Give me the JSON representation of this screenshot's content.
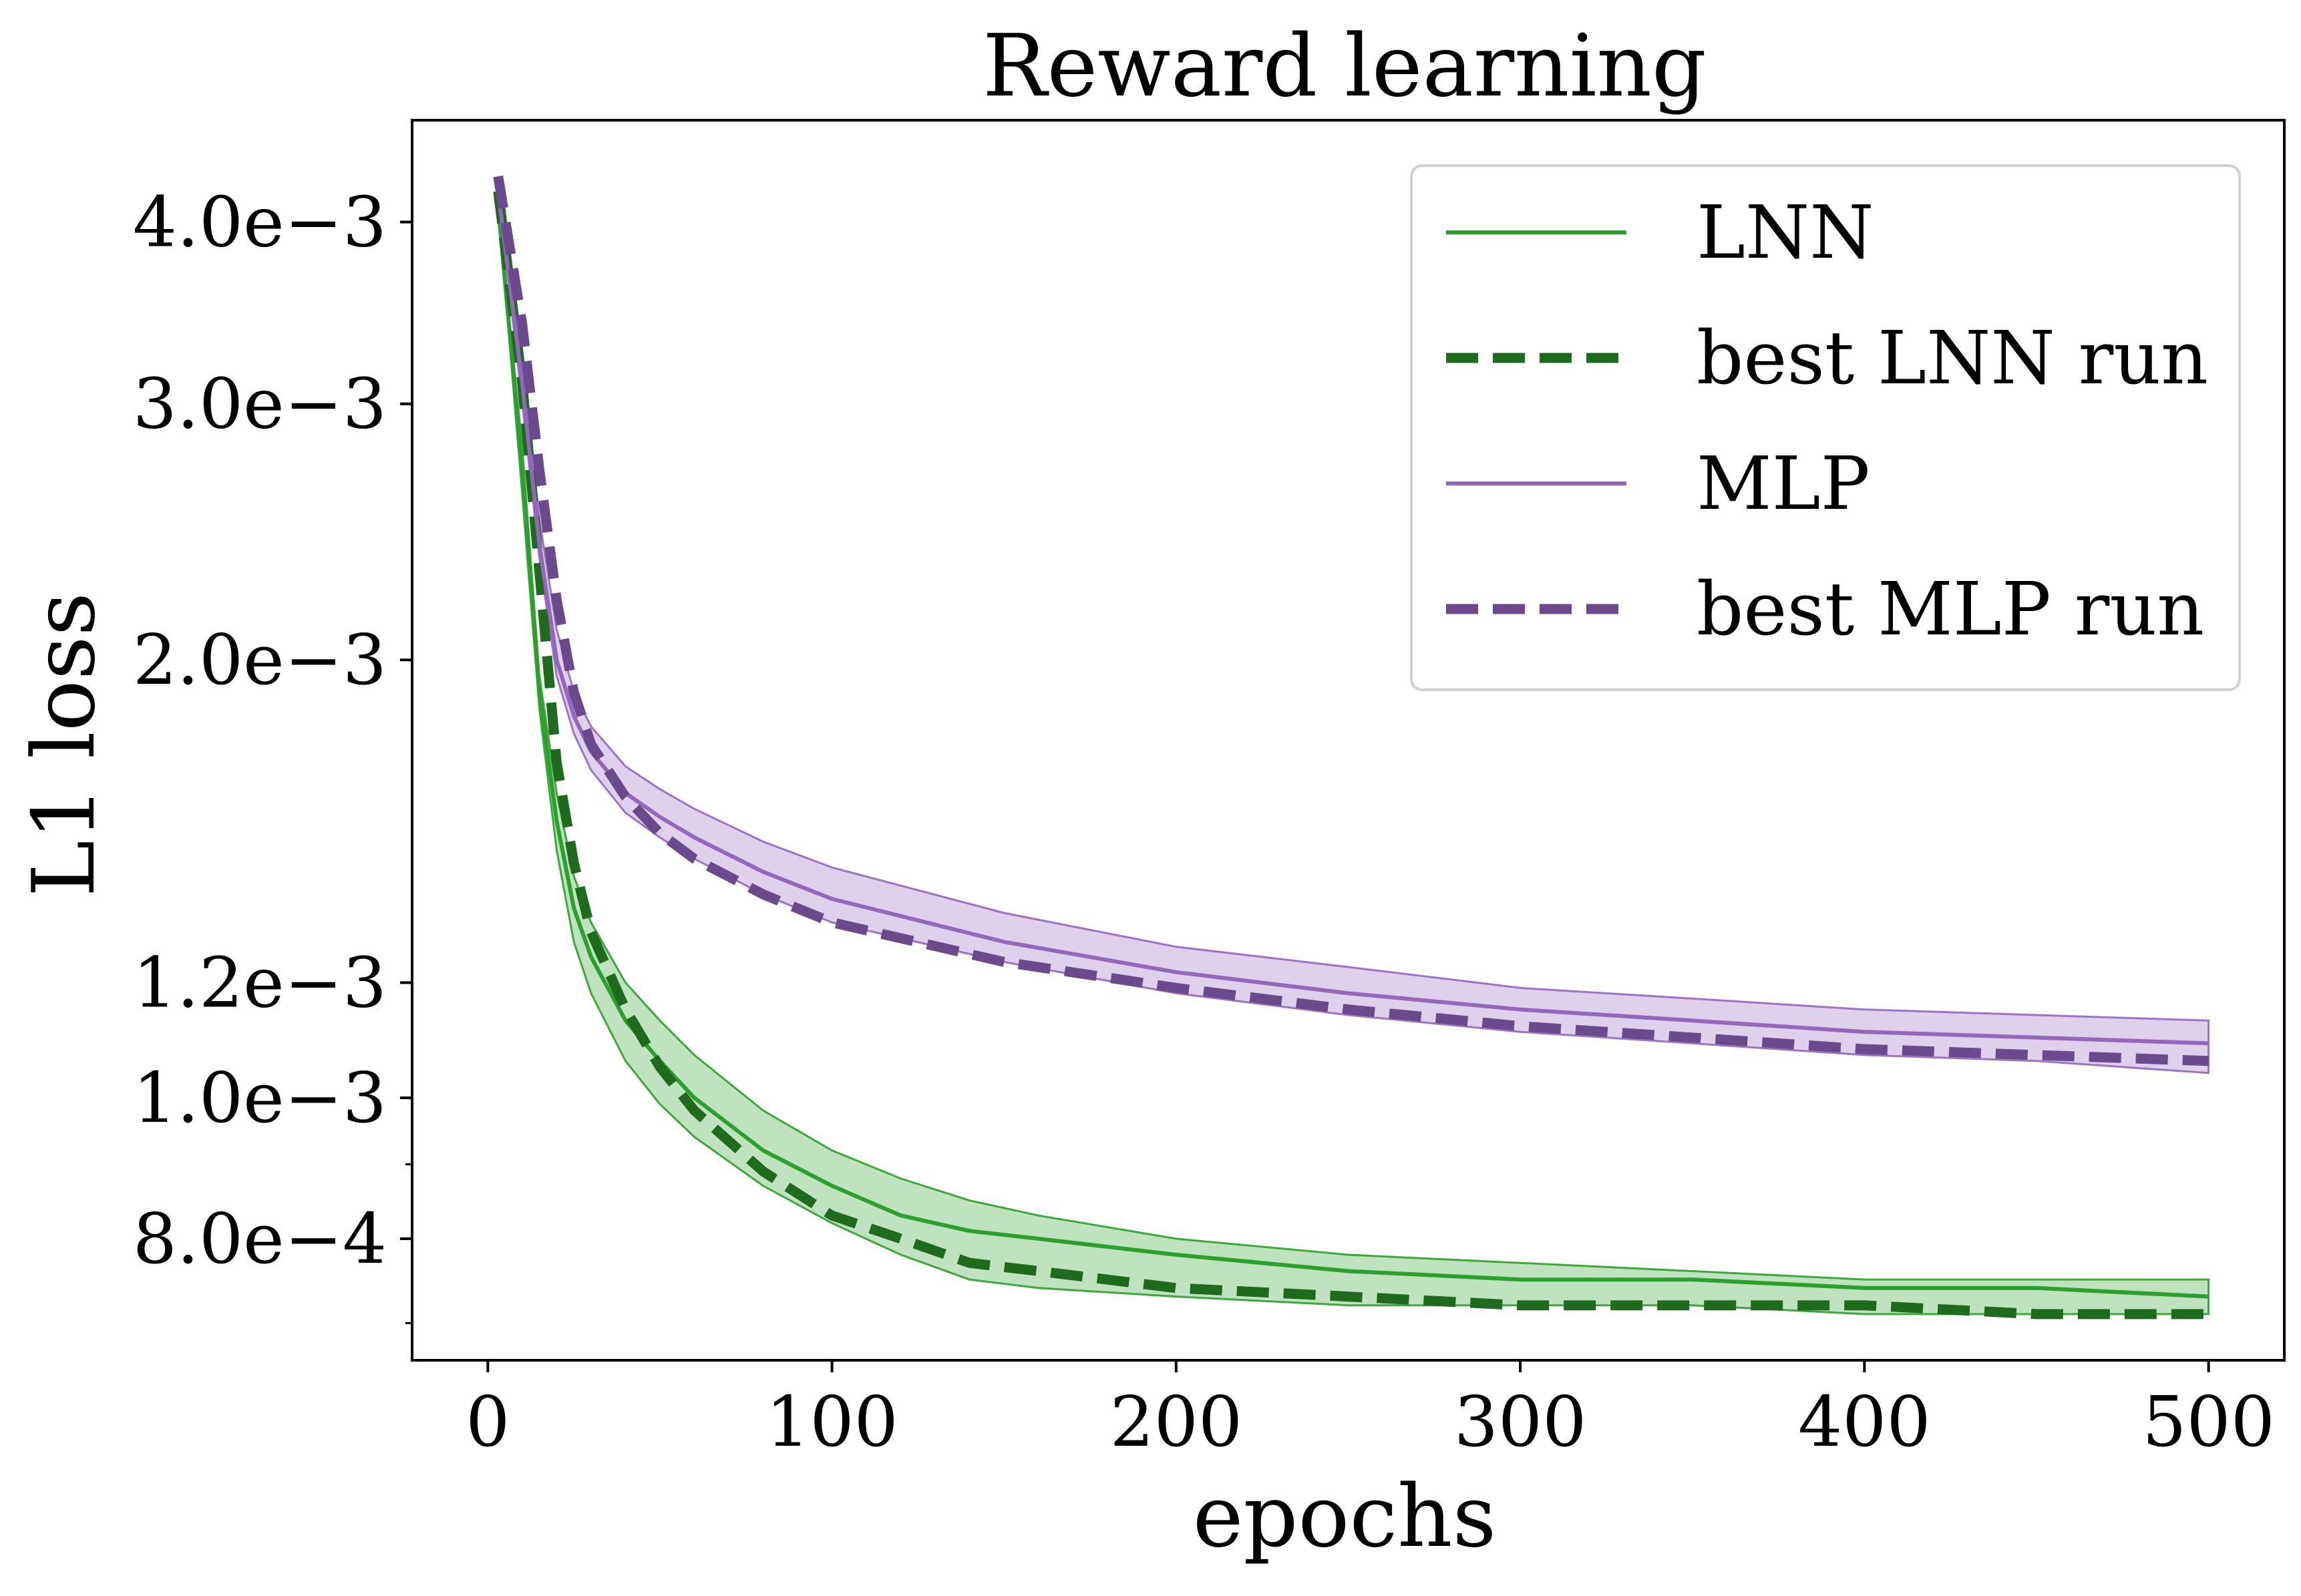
{
  "chart_data": {
    "type": "line",
    "title": "Reward learning",
    "xlabel": "epochs",
    "ylabel": "L1 loss",
    "xlim": [
      -22,
      522
    ],
    "ylim": [
      0.00066,
      0.0047
    ],
    "yscale": "log",
    "x_ticks": [
      {
        "value": 0,
        "label": "0"
      },
      {
        "value": 100,
        "label": "100"
      },
      {
        "value": 200,
        "label": "200"
      },
      {
        "value": 300,
        "label": "300"
      },
      {
        "value": 400,
        "label": "400"
      },
      {
        "value": 500,
        "label": "500"
      }
    ],
    "y_ticks": [
      {
        "value": 0.004,
        "label": "4.0e−3"
      },
      {
        "value": 0.003,
        "label": "3.0e−3"
      },
      {
        "value": 0.002,
        "label": "2.0e−3"
      },
      {
        "value": 0.0012,
        "label": "1.2e−3"
      },
      {
        "value": 0.001,
        "label": "1.0e−3"
      },
      {
        "value": 0.0008,
        "label": "8.0e−4"
      }
    ],
    "y_minor_ticks": [
      0.0009,
      0.0007
    ],
    "legend": {
      "position": "upper right",
      "entries": [
        {
          "label": "LNN",
          "style": "solid",
          "color": "#2ca02c"
        },
        {
          "label": "best LNN run",
          "style": "dashed",
          "color": "#1e6b1e"
        },
        {
          "label": "MLP",
          "style": "solid",
          "color": "#9467bd"
        },
        {
          "label": "best MLP run",
          "style": "dashed",
          "color": "#6a4a8c"
        }
      ]
    },
    "series": [
      {
        "name": "LNN",
        "style": "solid",
        "color": "#2ca02c",
        "band_color": "#2ca02c",
        "band_opacity": 0.3,
        "x": [
          3,
          10,
          15,
          20,
          25,
          30,
          40,
          50,
          60,
          80,
          100,
          120,
          140,
          160,
          200,
          250,
          300,
          350,
          400,
          450,
          500
        ],
        "y": [
          0.0041,
          0.0027,
          0.0019,
          0.00155,
          0.00135,
          0.00125,
          0.00113,
          0.00106,
          0.001,
          0.00092,
          0.00087,
          0.00083,
          0.00081,
          0.0008,
          0.00078,
          0.00076,
          0.00075,
          0.00075,
          0.00074,
          0.00074,
          0.00073
        ],
        "y_lower": [
          0.0041,
          0.0026,
          0.00185,
          0.00148,
          0.00128,
          0.00118,
          0.00106,
          0.00099,
          0.00094,
          0.00087,
          0.00082,
          0.00078,
          0.00075,
          0.00074,
          0.00073,
          0.00072,
          0.00072,
          0.00072,
          0.00071,
          0.00071,
          0.00071
        ],
        "y_upper": [
          0.0041,
          0.0028,
          0.00195,
          0.00162,
          0.00142,
          0.00132,
          0.0012,
          0.00113,
          0.00107,
          0.00098,
          0.00092,
          0.00088,
          0.00085,
          0.00083,
          0.0008,
          0.00078,
          0.00077,
          0.00076,
          0.00075,
          0.00075,
          0.00075
        ]
      },
      {
        "name": "best LNN run",
        "style": "dashed",
        "color": "#1e6b1e",
        "x": [
          3,
          10,
          15,
          20,
          25,
          30,
          40,
          50,
          60,
          80,
          100,
          120,
          140,
          160,
          200,
          250,
          300,
          350,
          400,
          450,
          500
        ],
        "y": [
          0.0042,
          0.0031,
          0.0023,
          0.0017,
          0.00145,
          0.0013,
          0.00115,
          0.00105,
          0.00098,
          0.00089,
          0.00083,
          0.0008,
          0.00077,
          0.00076,
          0.00074,
          0.00073,
          0.00072,
          0.00072,
          0.00072,
          0.00071,
          0.00071
        ]
      },
      {
        "name": "MLP",
        "style": "solid",
        "color": "#9467bd",
        "band_color": "#9467bd",
        "band_opacity": 0.3,
        "x": [
          3,
          10,
          15,
          20,
          25,
          30,
          40,
          50,
          60,
          80,
          100,
          150,
          200,
          250,
          300,
          350,
          400,
          450,
          500
        ],
        "y": [
          0.0042,
          0.0031,
          0.0024,
          0.002,
          0.00183,
          0.00173,
          0.00162,
          0.00156,
          0.00151,
          0.00143,
          0.00137,
          0.00128,
          0.00122,
          0.00118,
          0.00115,
          0.00113,
          0.00111,
          0.0011,
          0.00109
        ],
        "y_lower": [
          0.0042,
          0.003,
          0.00235,
          0.00195,
          0.00178,
          0.00168,
          0.00157,
          0.00151,
          0.00146,
          0.00138,
          0.00132,
          0.00124,
          0.00118,
          0.00114,
          0.00111,
          0.00109,
          0.00107,
          0.00106,
          0.00104
        ],
        "y_upper": [
          0.0042,
          0.0032,
          0.0025,
          0.0021,
          0.0019,
          0.0018,
          0.00169,
          0.00163,
          0.00158,
          0.0015,
          0.00144,
          0.00134,
          0.00127,
          0.00123,
          0.00119,
          0.00117,
          0.00115,
          0.00114,
          0.00113
        ]
      },
      {
        "name": "best MLP run",
        "style": "dashed",
        "color": "#6a4a8c",
        "x": [
          3,
          10,
          15,
          20,
          25,
          30,
          40,
          50,
          60,
          80,
          100,
          150,
          200,
          250,
          300,
          350,
          400,
          450,
          500
        ],
        "y": [
          0.0043,
          0.0034,
          0.0027,
          0.0022,
          0.0019,
          0.00175,
          0.00161,
          0.00152,
          0.00146,
          0.00138,
          0.00132,
          0.00124,
          0.00119,
          0.00115,
          0.00112,
          0.0011,
          0.00108,
          0.00107,
          0.00106
        ]
      }
    ]
  }
}
